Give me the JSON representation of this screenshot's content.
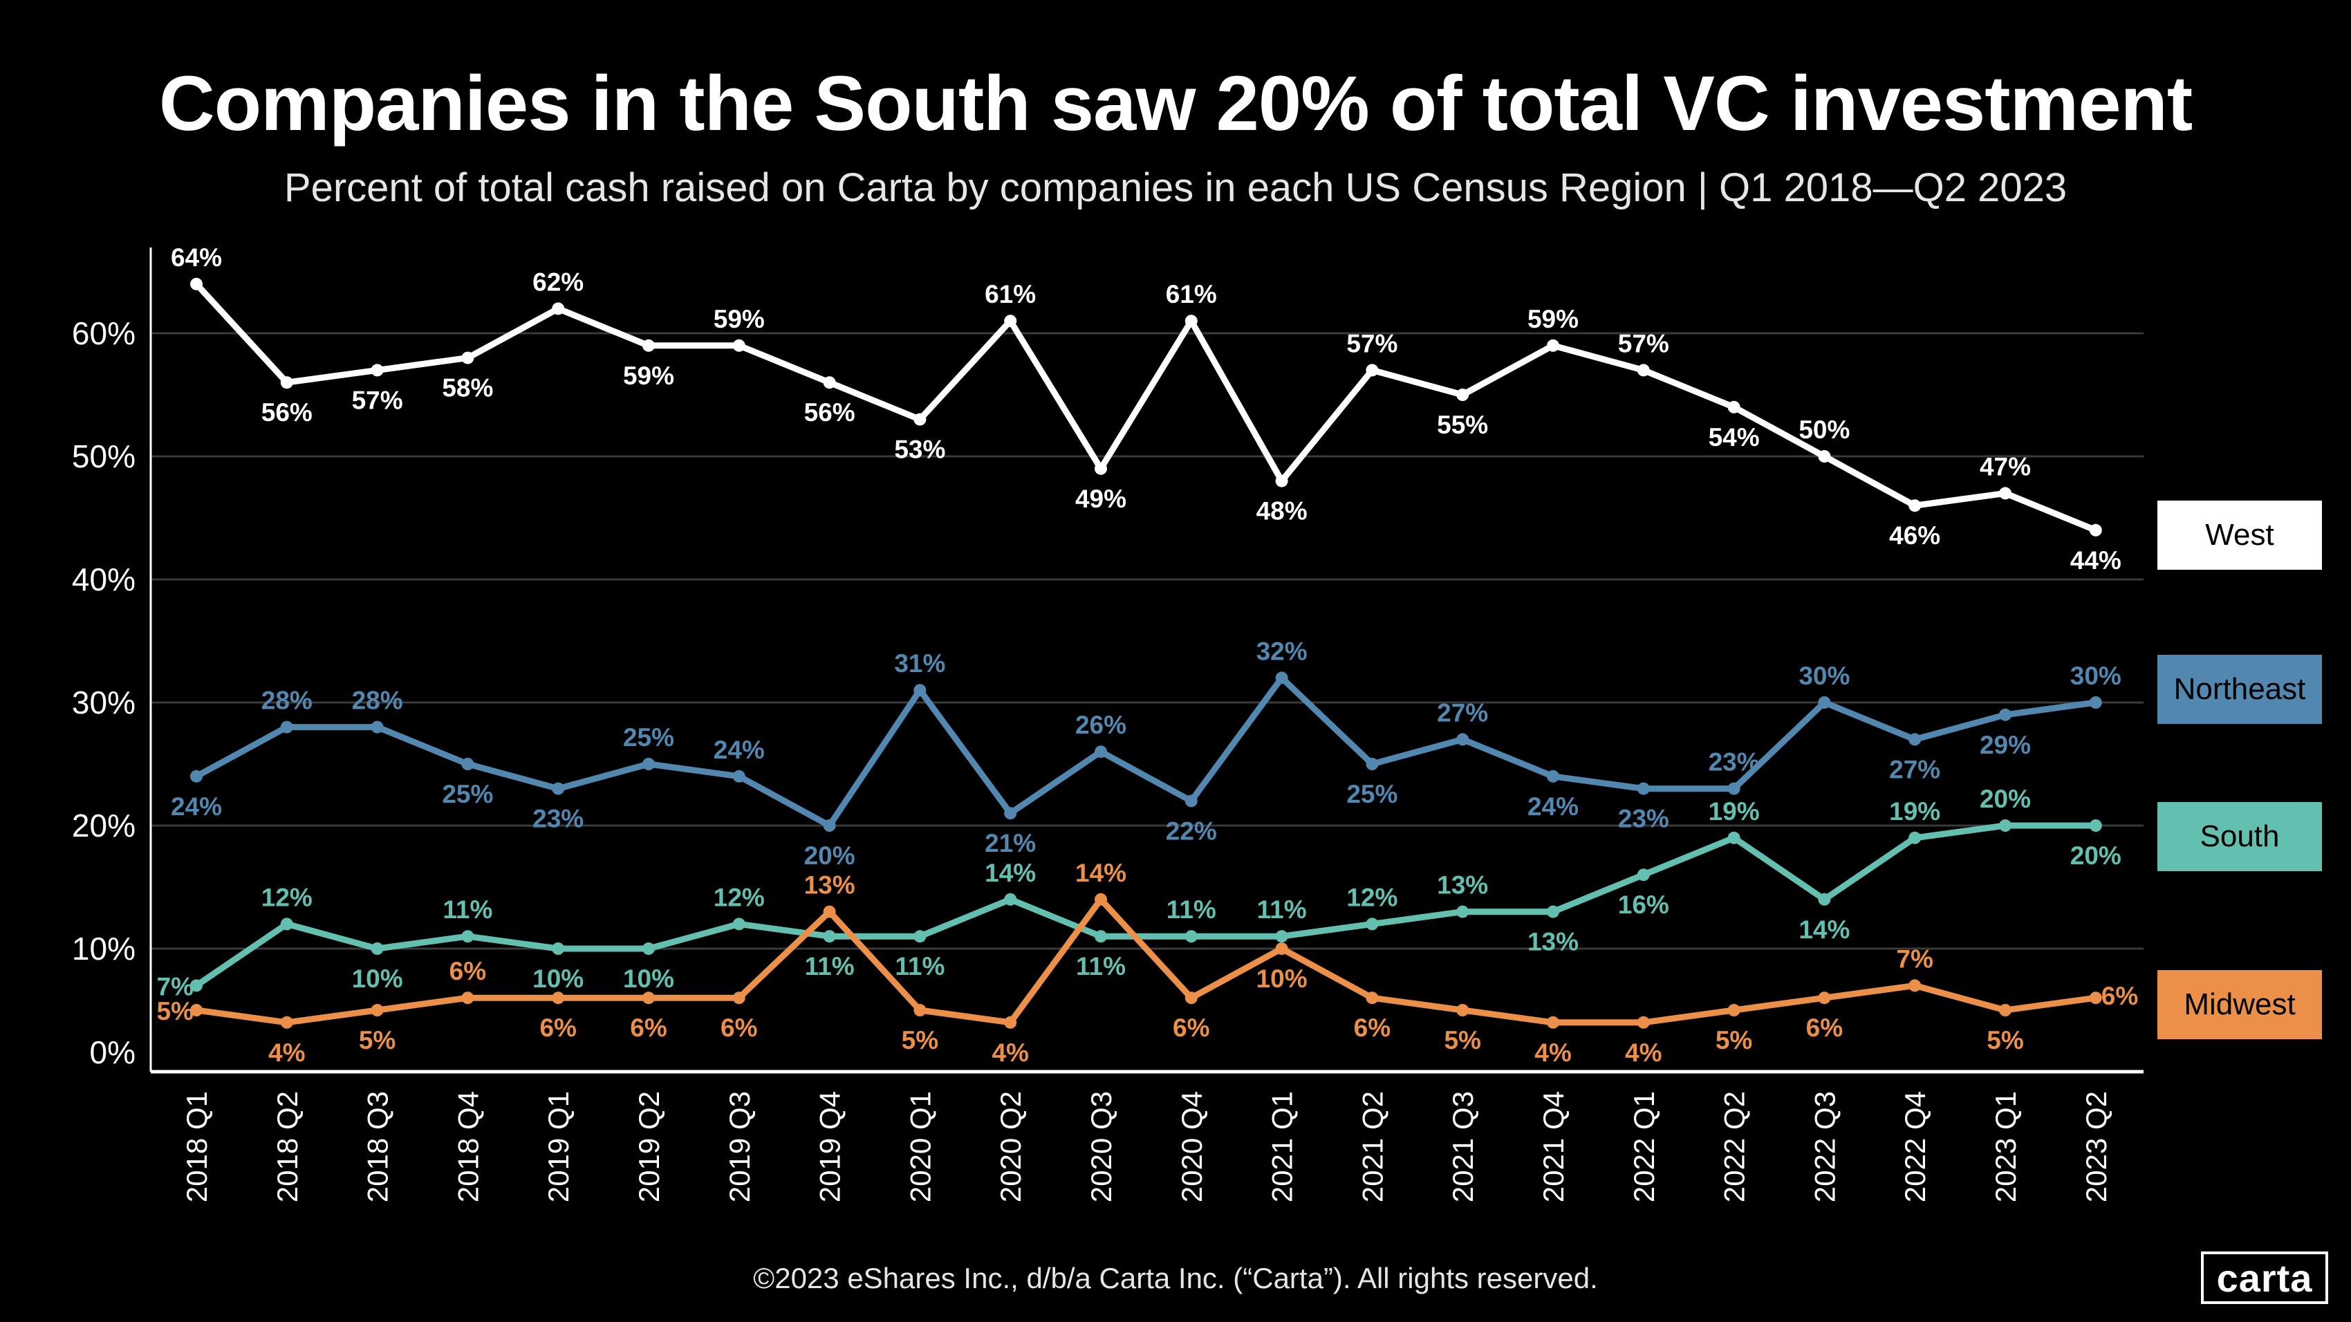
{
  "title": "Companies in the South saw 20% of total VC investment",
  "subtitle": "Percent of total cash raised on Carta by companies in each US Census Region |  Q1 2018—Q2 2023",
  "footer": "©2023 eShares Inc., d/b/a Carta Inc. (“Carta”). All rights reserved.",
  "logo": "carta",
  "chart_data": {
    "type": "line",
    "title": "Companies in the South saw 20% of total VC investment",
    "xlabel": "",
    "ylabel": "",
    "ylim": [
      0,
      66
    ],
    "yticks": [
      0,
      10,
      20,
      30,
      40,
      50,
      60
    ],
    "ytick_labels": [
      "0%",
      "10%",
      "20%",
      "30%",
      "40%",
      "50%",
      "60%"
    ],
    "grid": true,
    "legend": "right",
    "categories": [
      "2018 Q1",
      "2018 Q2",
      "2018 Q3",
      "2018 Q4",
      "2019 Q1",
      "2019 Q2",
      "2019 Q3",
      "2019 Q4",
      "2020 Q1",
      "2020 Q2",
      "2020 Q3",
      "2020 Q4",
      "2021 Q1",
      "2021 Q2",
      "2021 Q3",
      "2021 Q4",
      "2022 Q1",
      "2022 Q2",
      "2022 Q3",
      "2022 Q4",
      "2023 Q1",
      "2023 Q2"
    ],
    "series": [
      {
        "name": "West",
        "color": "#ffffff",
        "values": [
          64,
          56,
          57,
          58,
          62,
          59,
          59,
          56,
          53,
          61,
          49,
          61,
          48,
          57,
          55,
          59,
          57,
          54,
          50,
          46,
          47,
          44
        ]
      },
      {
        "name": "Northeast",
        "color": "#5288b0",
        "values": [
          24,
          28,
          28,
          25,
          23,
          25,
          24,
          20,
          31,
          21,
          26,
          22,
          32,
          25,
          27,
          24,
          23,
          23,
          30,
          27,
          29,
          30
        ]
      },
      {
        "name": "South",
        "color": "#63c0b0",
        "values": [
          7,
          12,
          10,
          11,
          10,
          10,
          12,
          11,
          11,
          14,
          11,
          11,
          11,
          12,
          13,
          13,
          16,
          19,
          14,
          19,
          20,
          20
        ]
      },
      {
        "name": "Midwest",
        "color": "#ec8f48",
        "values": [
          5,
          4,
          5,
          6,
          6,
          6,
          6,
          13,
          5,
          4,
          14,
          6,
          10,
          6,
          5,
          4,
          4,
          5,
          6,
          7,
          5,
          6
        ]
      }
    ]
  }
}
